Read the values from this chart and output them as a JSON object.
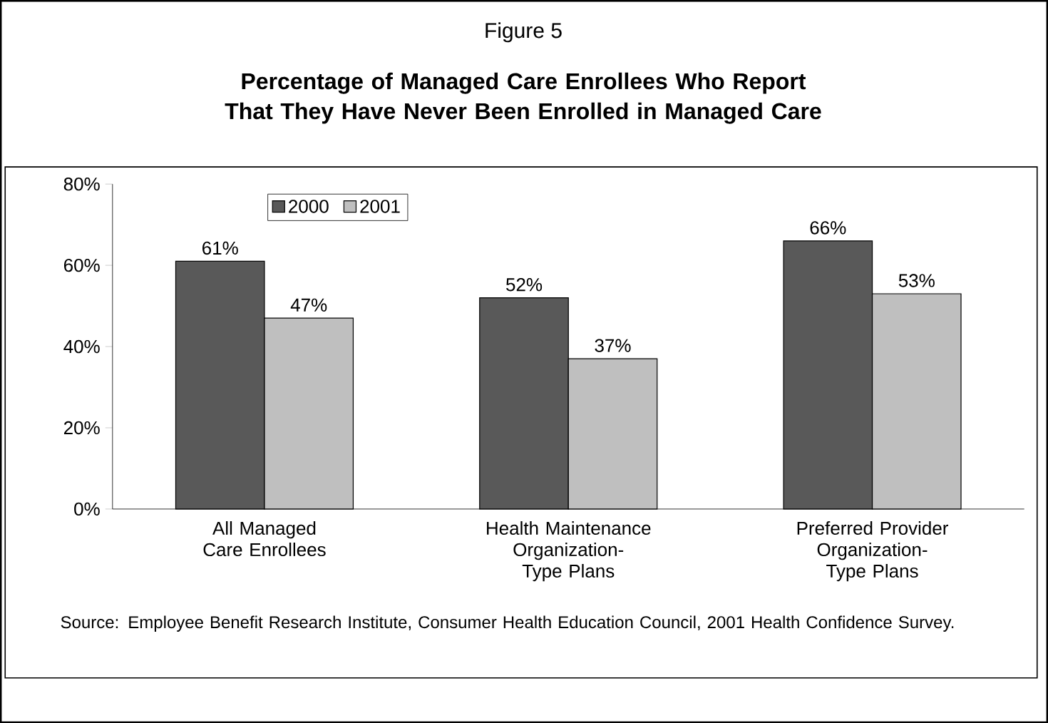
{
  "chart_data": {
    "type": "bar",
    "subtitle": "Figure 5",
    "title": "Percentage of Managed Care Enrollees Who Report That They Have Never Been Enrolled in Managed Care",
    "categories": [
      "All Managed Care Enrollees",
      "Health Maintenance Organization-Type Plans",
      "Preferred Provider Organization-Type Plans"
    ],
    "series": [
      {
        "name": "2000",
        "color": "#595959",
        "values": [
          61,
          52,
          66
        ],
        "value_labels": [
          "61%",
          "52%",
          "66%"
        ]
      },
      {
        "name": "2001",
        "color": "#bfbfbf",
        "values": [
          47,
          37,
          53
        ],
        "value_labels": [
          "47%",
          "37%",
          "53%"
        ]
      }
    ],
    "ylim": [
      0,
      80
    ],
    "yticks": [
      {
        "value": 0,
        "label": "0%"
      },
      {
        "value": 20,
        "label": "20%"
      },
      {
        "value": 40,
        "label": "40%"
      },
      {
        "value": 60,
        "label": "60%"
      },
      {
        "value": 80,
        "label": "80%"
      }
    ],
    "grid": false,
    "legend": "top left",
    "annotations": [
      "Source: Employee Benefit Research Institute, Consumer Health Education Council, 2001 Health Confidence Survey."
    ]
  }
}
